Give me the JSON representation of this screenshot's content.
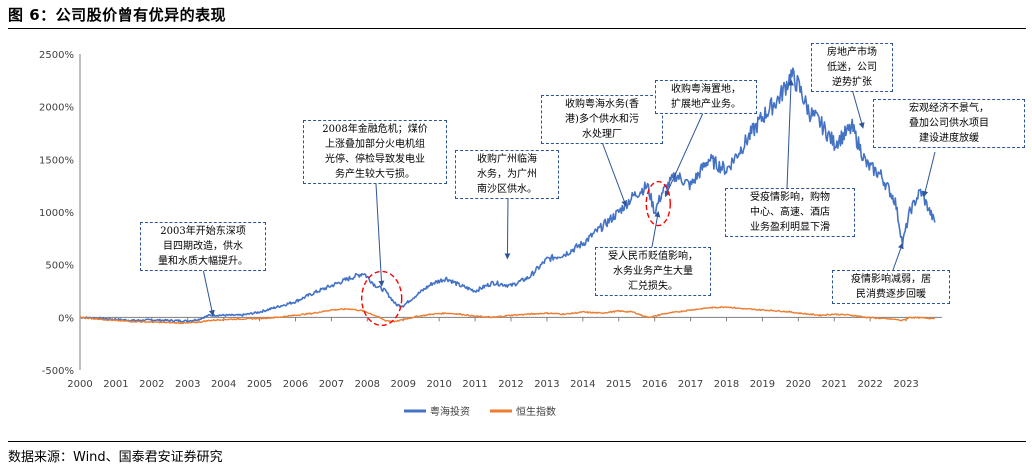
{
  "figure": {
    "title": "图 6：公司股价曾有优异的表现",
    "source": "数据来源：Wind、国泰君安证券研究"
  },
  "colors": {
    "blue": "#4472C4",
    "orange": "#ED7D31",
    "box_border": "#2E5597",
    "highlight": "#FF0000"
  },
  "chart_data": {
    "type": "line",
    "title": "",
    "xlabel": "",
    "ylabel": "",
    "x": [
      2000.0,
      2000.5,
      2001.0,
      2001.5,
      2002.0,
      2002.5,
      2003.0,
      2003.3,
      2003.6,
      2004.0,
      2004.5,
      2005.0,
      2005.5,
      2006.0,
      2006.5,
      2007.0,
      2007.5,
      2007.9,
      2008.2,
      2008.5,
      2008.8,
      2009.0,
      2009.4,
      2009.8,
      2010.2,
      2010.6,
      2011.0,
      2011.5,
      2012.0,
      2012.5,
      2013.0,
      2013.5,
      2014.0,
      2014.5,
      2015.0,
      2015.4,
      2015.8,
      2016.0,
      2016.2,
      2016.6,
      2017.0,
      2017.5,
      2018.0,
      2018.5,
      2019.0,
      2019.5,
      2019.8,
      2020.0,
      2020.3,
      2020.6,
      2021.0,
      2021.5,
      2021.9,
      2022.3,
      2022.7,
      2022.9,
      2023.1,
      2023.4,
      2023.8
    ],
    "series": [
      {
        "name": "粤海投资",
        "values": [
          0,
          -10,
          -20,
          -30,
          -25,
          -30,
          -35,
          -20,
          20,
          20,
          20,
          50,
          100,
          150,
          230,
          300,
          370,
          420,
          310,
          250,
          120,
          110,
          220,
          320,
          370,
          300,
          250,
          330,
          300,
          380,
          550,
          600,
          700,
          850,
          1000,
          1150,
          1250,
          1000,
          1180,
          1350,
          1250,
          1500,
          1400,
          1650,
          1900,
          2100,
          2300,
          2200,
          1950,
          1850,
          1650,
          1800,
          1450,
          1350,
          1100,
          700,
          1000,
          1200,
          900
        ]
      },
      {
        "name": "恒生指数",
        "values": [
          0,
          -15,
          -30,
          -40,
          -45,
          -50,
          -55,
          -45,
          -30,
          -20,
          -15,
          -10,
          0,
          20,
          40,
          70,
          80,
          60,
          20,
          -30,
          -40,
          -20,
          10,
          30,
          40,
          30,
          10,
          0,
          20,
          30,
          40,
          30,
          50,
          40,
          60,
          50,
          0,
          10,
          30,
          50,
          70,
          90,
          100,
          80,
          70,
          60,
          50,
          40,
          30,
          20,
          30,
          20,
          0,
          -10,
          -20,
          -30,
          0,
          -5,
          -10
        ]
      }
    ],
    "xticks": [
      "2000",
      "2001",
      "2002",
      "2003",
      "2004",
      "2005",
      "2006",
      "2007",
      "2008",
      "2009",
      "2010",
      "2011",
      "2012",
      "2013",
      "2014",
      "2015",
      "2016",
      "2017",
      "2018",
      "2019",
      "2020",
      "2021",
      "2022",
      "2023"
    ],
    "yticks": [
      "-500%",
      "0%",
      "500%",
      "1000%",
      "1500%",
      "2000%",
      "2500%"
    ],
    "ylim": [
      -500,
      2500
    ],
    "xlim": [
      2000,
      2024
    ],
    "legend": "bottom",
    "grid": false,
    "annotations": [
      {
        "text": "2003年开始东深项\n目四期改造，供水\n量和水质大幅提升。",
        "year": 2003.7,
        "value": 20
      },
      {
        "text": "2008年金融危机；煤价\n上涨叠加部分火电机组\n光停、停检导致发电业\n务产生较大亏损。",
        "year": 2008.4,
        "value": 300
      },
      {
        "text": "收购广州临海\n水务，为广州\n南沙区供水。",
        "year": 2011.9,
        "value": 560
      },
      {
        "text": "收购粤海水务(香\n港)多个供水和污\n水处理厂",
        "year": 2015.2,
        "value": 1060
      },
      {
        "text": "收购粤海置地，\n扩展地产业务。",
        "year": 2016.3,
        "value": 1150
      },
      {
        "text": "受人民币贬值影响，\n水务业务产生大量\n汇兑损失。",
        "year": 2016.1,
        "value": 1000
      },
      {
        "text": "房地产市场\n低迷，公司\n逆势扩张",
        "year": 2021.8,
        "value": 1800
      },
      {
        "text": "受疫情影响，购物\n中心、高速、酒店\n业务盈利明显下滑",
        "year": 2019.8,
        "value": 2250
      },
      {
        "text": "宏观经济不景气，\n叠加公司供水项目\n建设进度放缓",
        "year": 2023.5,
        "value": 1150
      },
      {
        "text": "疫情影响减弱，居\n民消费逐步回暖",
        "year": 2022.9,
        "value": 700
      }
    ],
    "highlights": [
      {
        "year": 2008.4,
        "value": 180
      },
      {
        "year": 2016.1,
        "value": 1080
      }
    ]
  }
}
